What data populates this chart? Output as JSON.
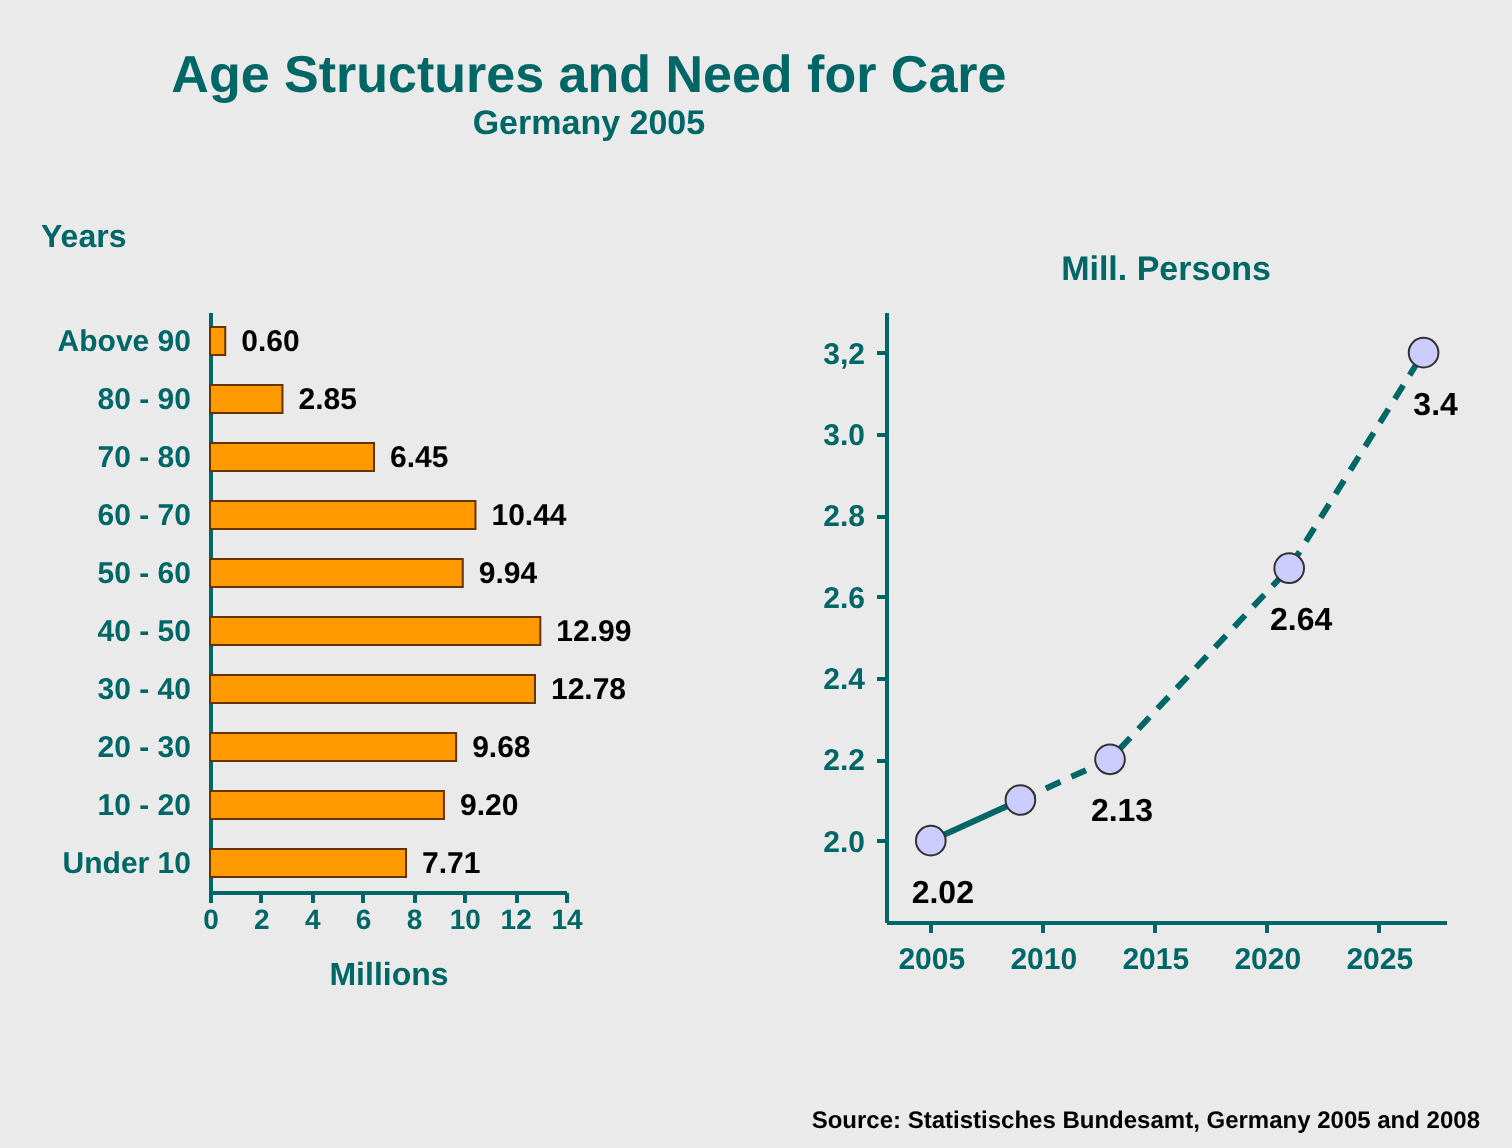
{
  "chart_data": [
    {
      "type": "bar",
      "orientation": "horizontal",
      "title": "Age Structures and Need for Care",
      "subtitle": "Germany 2005",
      "ylabel": "Years",
      "xlabel": "Millions",
      "categories": [
        "Above 90",
        "80 - 90",
        "70 - 80",
        "60 - 70",
        "50 - 60",
        "40 - 50",
        "30 - 40",
        "20 - 30",
        "10 - 20",
        "Under 10"
      ],
      "values": [
        0.6,
        2.85,
        6.45,
        10.44,
        9.94,
        12.99,
        12.78,
        9.68,
        9.2,
        7.71
      ],
      "value_labels": [
        "0.60",
        "2.85",
        "6.45",
        "10.44",
        "9.94",
        "12.99",
        "12.78",
        "9.68",
        "9.20",
        "7.71"
      ],
      "color": "#ff9900",
      "xlim": [
        0,
        14
      ],
      "xticks": [
        0,
        2,
        4,
        6,
        8,
        10,
        12,
        14
      ],
      "grid": false
    },
    {
      "type": "line",
      "title": "Mill. Persons",
      "xlim": [
        2003,
        2028
      ],
      "xticks": [
        2005,
        2010,
        2015,
        2020,
        2025
      ],
      "ylim": [
        1.8,
        3.3
      ],
      "yticks": [
        {
          "value": 2.0,
          "label": "2.0"
        },
        {
          "value": 2.2,
          "label": "2.2"
        },
        {
          "value": 2.4,
          "label": "2.4"
        },
        {
          "value": 2.6,
          "label": "2.6"
        },
        {
          "value": 2.8,
          "label": "2.8"
        },
        {
          "value": 3.0,
          "label": "3.0"
        },
        {
          "value": 3.2,
          "label": "3,2"
        }
      ],
      "series": [
        {
          "type": "line",
          "x": [
            2005,
            2009
          ],
          "values": [
            2.0,
            2.1
          ],
          "color": "#006666",
          "line_style": "solid"
        },
        {
          "type": "line",
          "x": [
            2009,
            2013,
            2021,
            2027
          ],
          "values": [
            2.1,
            2.2,
            2.67,
            3.2
          ],
          "color": "#006666",
          "line_style": "dashed"
        },
        {
          "type": "scatter",
          "x": [
            2005,
            2009,
            2013,
            2021,
            2027
          ],
          "values": [
            2.0,
            2.1,
            2.2,
            2.67,
            3.2
          ],
          "color": "#ccccff",
          "marker": "circle"
        }
      ],
      "grid": false,
      "annotations": [
        {
          "text": "2.02",
          "x": 2005,
          "y": 2.0
        },
        {
          "text": "2.13",
          "x": 2013,
          "y": 2.2
        },
        {
          "text": "2.64",
          "x": 2021,
          "y": 2.67
        },
        {
          "text": "3.4",
          "x": 2027,
          "y": 3.2
        },
        "Source: Statistisches Bundesamt, Germany  2005 and 2008"
      ]
    }
  ]
}
